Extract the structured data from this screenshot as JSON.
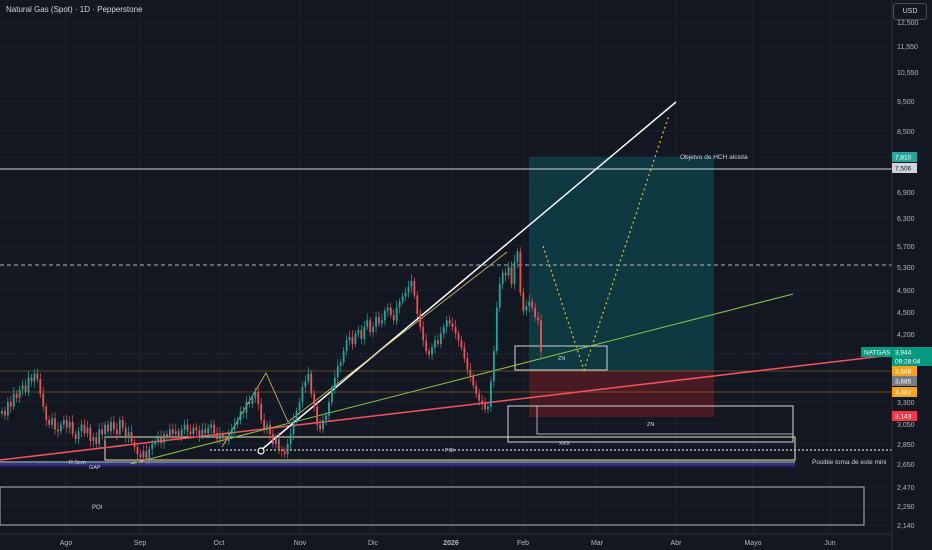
{
  "header": {
    "symbol_title": "Natural Gas (Spot) · 1D · Pepperstone",
    "currency_button": "USD"
  },
  "colors": {
    "background": "#131722",
    "candle_up": "#26a69a",
    "candle_down": "#ef5350",
    "axis_text": "#b2b5be",
    "target_zone": "#0e3b43",
    "stop_zone": "#4b1a24"
  },
  "chart_data": {
    "type": "candlestick",
    "symbol": "NATGAS",
    "timeframe": "1D",
    "y_scale": "log",
    "y_ticks": [
      "12,500",
      "11,550",
      "10,550",
      "9,500",
      "8,500",
      "7,500",
      "6,900",
      "6,300",
      "5,700",
      "5,300",
      "4,900",
      "4,500",
      "4,200",
      "3,900",
      "3,600",
      "3,300",
      "3,050",
      "2,850",
      "2,650",
      "2,470",
      "2,290",
      "2,140"
    ],
    "x_ticks": [
      "Ago",
      "Sep",
      "Oct",
      "Nov",
      "Dic",
      "2026",
      "Feb",
      "Mar",
      "Abr",
      "Mayo",
      "Jun"
    ],
    "price_labels": [
      {
        "text": "7,810",
        "color": "#26a69a"
      },
      {
        "text": "7,506",
        "color": "#d1d4dc"
      },
      {
        "text": "NATGAS",
        "color": "#089981"
      },
      {
        "text": "3,944",
        "color": "#089981"
      },
      {
        "text": "09:28:04",
        "color": "#089981"
      },
      {
        "text": "3,688",
        "color": "#f7a21b"
      },
      {
        "text": "3,685",
        "color": "#787b86"
      },
      {
        "text": "3,482",
        "color": "#f7a21b"
      },
      {
        "text": "3,143",
        "color": "#f23645"
      }
    ],
    "annotations": [
      "Objetvo de HCH alcista",
      "ZN",
      "ZN",
      "XXX",
      "POI",
      "POI",
      "R Sem",
      "GAP",
      "Posible toma de este mini"
    ],
    "close_series": [
      3.2,
      3.15,
      3.3,
      3.25,
      3.4,
      3.35,
      3.45,
      3.5,
      3.42,
      3.6,
      3.55,
      3.65,
      3.58,
      3.4,
      3.25,
      3.1,
      3.05,
      3.12,
      3.0,
      2.98,
      3.05,
      3.1,
      3.02,
      3.08,
      2.95,
      2.9,
      2.98,
      3.05,
      2.96,
      3.02,
      2.88,
      2.92,
      2.85,
      3.0,
      2.95,
      3.05,
      2.98,
      3.08,
      3.0,
      2.95,
      3.1,
      3.02,
      2.92,
      2.97,
      2.87,
      2.82,
      2.75,
      2.72,
      2.78,
      2.7,
      2.8,
      2.85,
      2.88,
      2.92,
      2.86,
      2.95,
      2.93,
      3.0,
      2.95,
      2.98,
      2.92,
      3.0,
      3.05,
      2.98,
      2.95,
      3.02,
      2.99,
      2.93,
      3.0,
      2.96,
      3.02,
      3.05,
      2.96,
      2.9,
      2.95,
      2.93,
      2.88,
      2.95,
      3.0,
      3.05,
      3.1,
      3.2,
      3.18,
      3.3,
      3.28,
      3.35,
      3.42,
      3.28,
      3.1,
      3.0,
      3.05,
      2.95,
      2.85,
      2.9,
      2.8,
      2.78,
      2.75,
      2.85,
      2.95,
      3.1,
      3.2,
      3.3,
      3.48,
      3.55,
      3.65,
      3.4,
      3.25,
      3.05,
      3.0,
      3.1,
      3.15,
      3.3,
      3.45,
      3.6,
      3.75,
      3.8,
      3.95,
      4.1,
      4.15,
      4.05,
      4.2,
      4.25,
      4.12,
      4.3,
      4.4,
      4.22,
      4.3,
      4.45,
      4.35,
      4.4,
      4.55,
      4.6,
      4.48,
      4.4,
      4.6,
      4.7,
      4.78,
      4.85,
      4.95,
      5.05,
      4.8,
      4.5,
      4.3,
      4.1,
      3.95,
      3.9,
      4.0,
      4.1,
      4.05,
      4.2,
      4.3,
      4.4,
      4.35,
      4.3,
      4.2,
      4.1,
      4.0,
      3.85,
      3.7,
      3.62,
      3.5,
      3.4,
      3.32,
      3.28,
      3.22,
      3.25,
      3.55,
      3.95,
      4.6,
      5.0,
      5.2,
      5.15,
      5.3,
      5.0,
      5.4,
      5.6,
      4.85,
      4.55,
      4.62,
      4.7,
      4.6,
      4.45,
      4.4,
      3.944
    ]
  }
}
